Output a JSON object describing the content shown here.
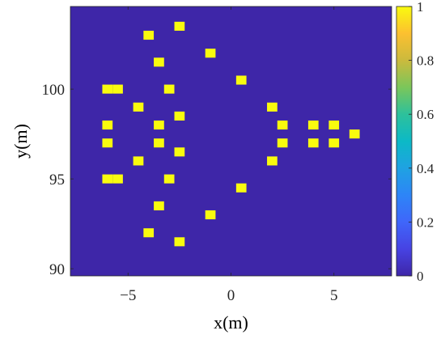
{
  "chart_data": {
    "type": "heatmap",
    "title": "",
    "xlabel": "x(m)",
    "ylabel": "y(m)",
    "xlim": [
      -7.8,
      7.8
    ],
    "ylim": [
      89.6,
      104.6
    ],
    "x_ticks": [
      -5,
      0,
      5
    ],
    "x_tick_labels": [
      "−5",
      "0",
      "5"
    ],
    "y_ticks": [
      90,
      95,
      100
    ],
    "y_tick_labels": [
      "90",
      "95",
      "100"
    ],
    "grid": false,
    "background_value": 0,
    "cell_size": [
      0.5,
      0.5
    ],
    "colormap": "parula",
    "colorbar": {
      "min": 0,
      "max": 1,
      "ticks": [
        0,
        0.2,
        0.4,
        0.6,
        0.8,
        1
      ],
      "tick_labels": [
        "0",
        "0.2",
        "0.4",
        "0.6",
        "0.8",
        "1"
      ],
      "placement": "right"
    },
    "cells": [
      {
        "x": -2.5,
        "y": 103.5,
        "value": 1
      },
      {
        "x": -4.0,
        "y": 103.0,
        "value": 1
      },
      {
        "x": -1.0,
        "y": 102.0,
        "value": 1
      },
      {
        "x": -3.5,
        "y": 101.5,
        "value": 1
      },
      {
        "x": 0.5,
        "y": 100.5,
        "value": 1
      },
      {
        "x": -6.0,
        "y": 100.0,
        "value": 1
      },
      {
        "x": -5.5,
        "y": 100.0,
        "value": 1
      },
      {
        "x": -3.0,
        "y": 100.0,
        "value": 1
      },
      {
        "x": -4.5,
        "y": 99.0,
        "value": 1
      },
      {
        "x": 2.0,
        "y": 99.0,
        "value": 1
      },
      {
        "x": -2.5,
        "y": 98.5,
        "value": 1
      },
      {
        "x": -6.0,
        "y": 98.0,
        "value": 1
      },
      {
        "x": -3.5,
        "y": 98.0,
        "value": 1
      },
      {
        "x": 2.5,
        "y": 98.0,
        "value": 1
      },
      {
        "x": 4.0,
        "y": 98.0,
        "value": 1
      },
      {
        "x": 5.0,
        "y": 98.0,
        "value": 1
      },
      {
        "x": 6.0,
        "y": 97.5,
        "value": 1
      },
      {
        "x": -6.0,
        "y": 97.0,
        "value": 1
      },
      {
        "x": -3.5,
        "y": 97.0,
        "value": 1
      },
      {
        "x": 2.5,
        "y": 97.0,
        "value": 1
      },
      {
        "x": 4.0,
        "y": 97.0,
        "value": 1
      },
      {
        "x": 5.0,
        "y": 97.0,
        "value": 1
      },
      {
        "x": -2.5,
        "y": 96.5,
        "value": 1
      },
      {
        "x": -4.5,
        "y": 96.0,
        "value": 1
      },
      {
        "x": 2.0,
        "y": 96.0,
        "value": 1
      },
      {
        "x": -6.0,
        "y": 95.0,
        "value": 1
      },
      {
        "x": -5.5,
        "y": 95.0,
        "value": 1
      },
      {
        "x": -3.0,
        "y": 95.0,
        "value": 1
      },
      {
        "x": 0.5,
        "y": 94.5,
        "value": 1
      },
      {
        "x": -3.5,
        "y": 93.5,
        "value": 1
      },
      {
        "x": -1.0,
        "y": 93.0,
        "value": 1
      },
      {
        "x": -4.0,
        "y": 92.0,
        "value": 1
      },
      {
        "x": -2.5,
        "y": 91.5,
        "value": 1
      }
    ]
  }
}
